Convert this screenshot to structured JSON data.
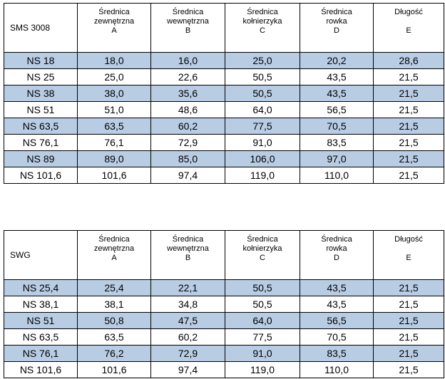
{
  "tables": [
    {
      "name": "SMS 3008",
      "headers": [
        [
          "Średnica",
          "zewnętrzna",
          "A"
        ],
        [
          "Średnica",
          "wewnętrzna",
          "B"
        ],
        [
          "Średnica",
          "kołnierzyka",
          "C"
        ],
        [
          "Średnica",
          "rowka",
          "D"
        ],
        [
          "Długość",
          "",
          "E"
        ]
      ],
      "rows": [
        [
          "NS 18",
          "18,0",
          "16,0",
          "25,0",
          "20,2",
          "28,6"
        ],
        [
          "NS 25",
          "25,0",
          "22,6",
          "50,5",
          "43,5",
          "21,5"
        ],
        [
          "NS 38",
          "38,0",
          "35,6",
          "50,5",
          "43,5",
          "21,5"
        ],
        [
          "NS 51",
          "51,0",
          "48,6",
          "64,0",
          "56,5",
          "21,5"
        ],
        [
          "NS 63,5",
          "63,5",
          "60,2",
          "77,5",
          "70,5",
          "21,5"
        ],
        [
          "NS 76,1",
          "76,1",
          "72,9",
          "91,0",
          "83,5",
          "21,5"
        ],
        [
          "NS 89",
          "89,0",
          "85,0",
          "106,0",
          "97,0",
          "21,5"
        ],
        [
          "NS 101,6",
          "101,6",
          "97,4",
          "119,0",
          "110,0",
          "21,5"
        ]
      ]
    },
    {
      "name": "SWG",
      "headers": [
        [
          "Średnica",
          "zewnętrzna",
          "A"
        ],
        [
          "Średnica",
          "wewnętrzna",
          "B"
        ],
        [
          "Średnica",
          "kołnierzyka",
          "C"
        ],
        [
          "Średnica",
          "rowka",
          "D"
        ],
        [
          "Długość",
          "",
          "E"
        ]
      ],
      "rows": [
        [
          "NS 25,4",
          "25,4",
          "22,1",
          "50,5",
          "43,5",
          "21,5"
        ],
        [
          "NS 38,1",
          "38,1",
          "34,8",
          "50,5",
          "43,5",
          "21,5"
        ],
        [
          "NS 51",
          "50,8",
          "47,5",
          "64,0",
          "56,5",
          "21,5"
        ],
        [
          "NS 63,5",
          "63,5",
          "60,2",
          "77,5",
          "70,5",
          "21,5"
        ],
        [
          "NS 76,1",
          "76,2",
          "72,9",
          "91,0",
          "83,5",
          "21,5"
        ],
        [
          "NS 101,6",
          "101,6",
          "97,4",
          "119,0",
          "110,0",
          "21,5"
        ]
      ]
    }
  ]
}
